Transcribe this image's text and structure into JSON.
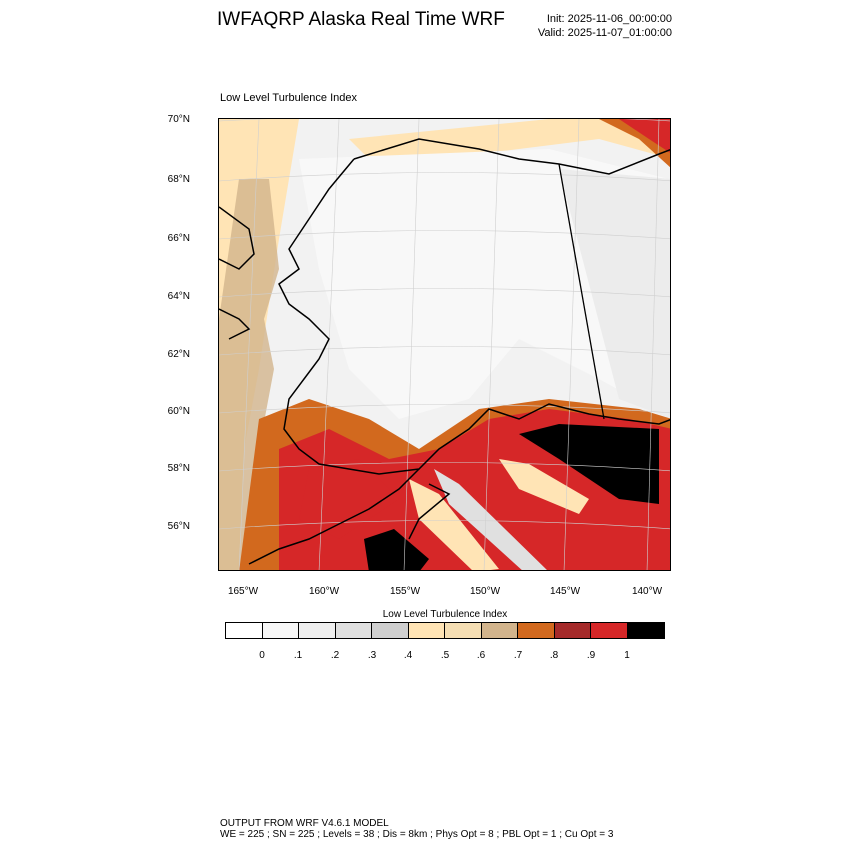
{
  "header": {
    "title": "IWFAQRP Alaska Real Time WRF",
    "init": "Init: 2025-11-06_00:00:00",
    "valid": "Valid: 2025-11-07_01:00:00"
  },
  "map": {
    "title": "Low Level Turbulence Index",
    "lat_labels": [
      "70°N",
      "68°N",
      "66°N",
      "64°N",
      "62°N",
      "60°N",
      "58°N",
      "56°N"
    ],
    "lon_labels": [
      "165°W",
      "160°W",
      "155°W",
      "150°W",
      "145°W",
      "140°W"
    ]
  },
  "colorbar": {
    "title": "Low Level Turbulence Index",
    "labels": [
      "0",
      ".1",
      ".2",
      ".3",
      ".4",
      ".5",
      ".6",
      ".7",
      ".8",
      ".9",
      "1"
    ],
    "colors": [
      "#ffffff",
      "#f7f7f7",
      "#efefef",
      "#e0e0e0",
      "#cfcfcf",
      "#ffe4b5",
      "#f5deb3",
      "#d2b48c",
      "#d2691e",
      "#a52a2a",
      "#d62728",
      "#000000"
    ]
  },
  "footer": {
    "line1": "OUTPUT FROM WRF V4.6.1 MODEL",
    "line2": "WE = 225 ; SN = 225 ; Levels = 38 ; Dis = 8km ; Phys Opt = 8 ; PBL Opt = 1 ; Cu Opt = 3"
  }
}
